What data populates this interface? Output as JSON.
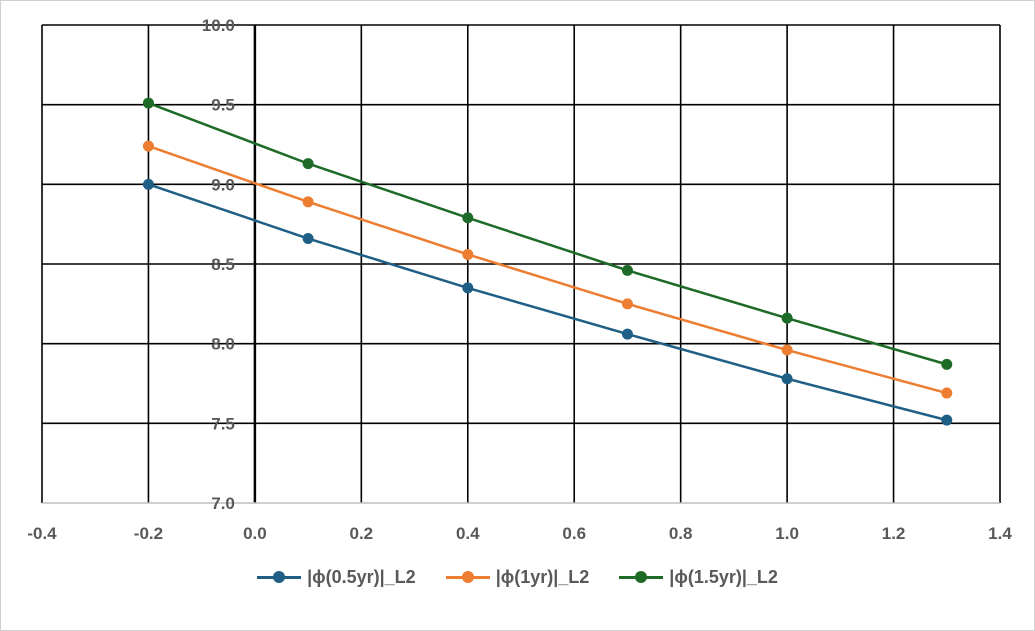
{
  "chart_data": {
    "type": "line",
    "xlim": [
      -0.4,
      1.4
    ],
    "ylim": [
      7.0,
      10.0
    ],
    "x_ticks": [
      "-0.4",
      "-0.2",
      "0.0",
      "0.2",
      "0.4",
      "0.6",
      "0.8",
      "1.0",
      "1.2",
      "1.4"
    ],
    "y_ticks": [
      "7.0",
      "7.5",
      "8.0",
      "8.5",
      "9.0",
      "9.5",
      "10.0"
    ],
    "grid": true,
    "legend_position": "bottom",
    "x": [
      -0.2,
      0.1,
      0.4,
      0.7,
      1.0,
      1.3
    ],
    "series": [
      {
        "name": "|ϕ(0.5yr)|_L2",
        "color": "#1f5f86",
        "values": [
          9.0,
          8.66,
          8.35,
          8.06,
          7.78,
          7.52
        ]
      },
      {
        "name": "|ϕ(1yr)|_L2",
        "color": "#ed7d31",
        "values": [
          9.24,
          8.89,
          8.56,
          8.25,
          7.96,
          7.69
        ]
      },
      {
        "name": "|ϕ(1.5yr)|_L2",
        "color": "#1e6b27",
        "values": [
          9.51,
          9.13,
          8.79,
          8.46,
          8.16,
          7.87
        ]
      }
    ]
  }
}
